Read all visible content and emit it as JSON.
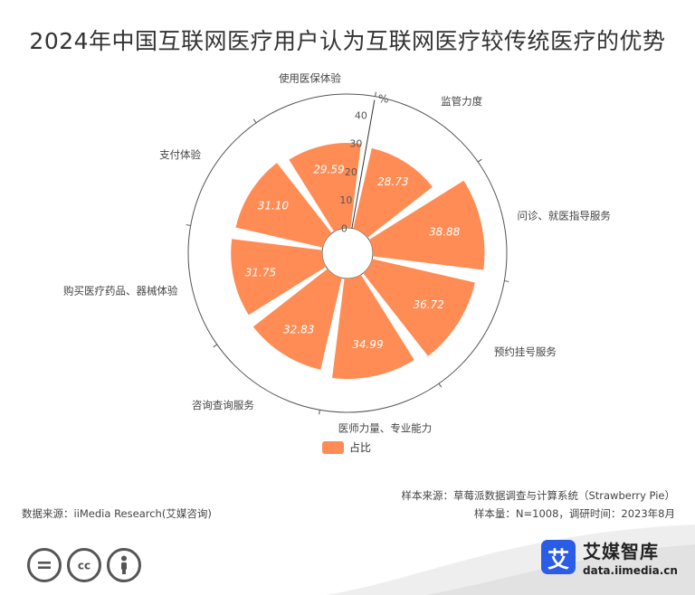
{
  "title": "2024年中国互联网医疗用户认为互联网医疗较传统医疗的优势",
  "chart_data": {
    "type": "bar",
    "layout": "polar",
    "unit": "%",
    "categories": [
      "监管力度",
      "问诊、就医指导服务",
      "预约挂号服务",
      "医师力量、专业能力",
      "咨询查询服务",
      "购买医疗药品、器械体验",
      "支付体验",
      "使用医保体验"
    ],
    "series": [
      {
        "name": "占比",
        "values": [
          28.73,
          38.88,
          36.72,
          34.99,
          32.83,
          31.75,
          31.1,
          29.59
        ]
      }
    ],
    "radial_ticks": [
      "0",
      "10",
      "20",
      "30",
      "40"
    ],
    "rlim": [
      0,
      40
    ],
    "color": "#ff8c55",
    "legend_position": "bottom"
  },
  "notes": {
    "sample_source": "样本来源：草莓派数据调查与计算系统（Strawberry Pie）",
    "sample_size": "样本量：N=1008，调研时间：2023年8月",
    "data_source": "数据来源：iiMedia Research(艾媒咨询)"
  },
  "brand": {
    "logo_char": "艾",
    "name": "艾媒智库",
    "url": "data.iimedia.cn",
    "logo_color": "#2b5ce6"
  },
  "license_icons": [
    "equals-icon",
    "cc-icon",
    "person-icon"
  ]
}
